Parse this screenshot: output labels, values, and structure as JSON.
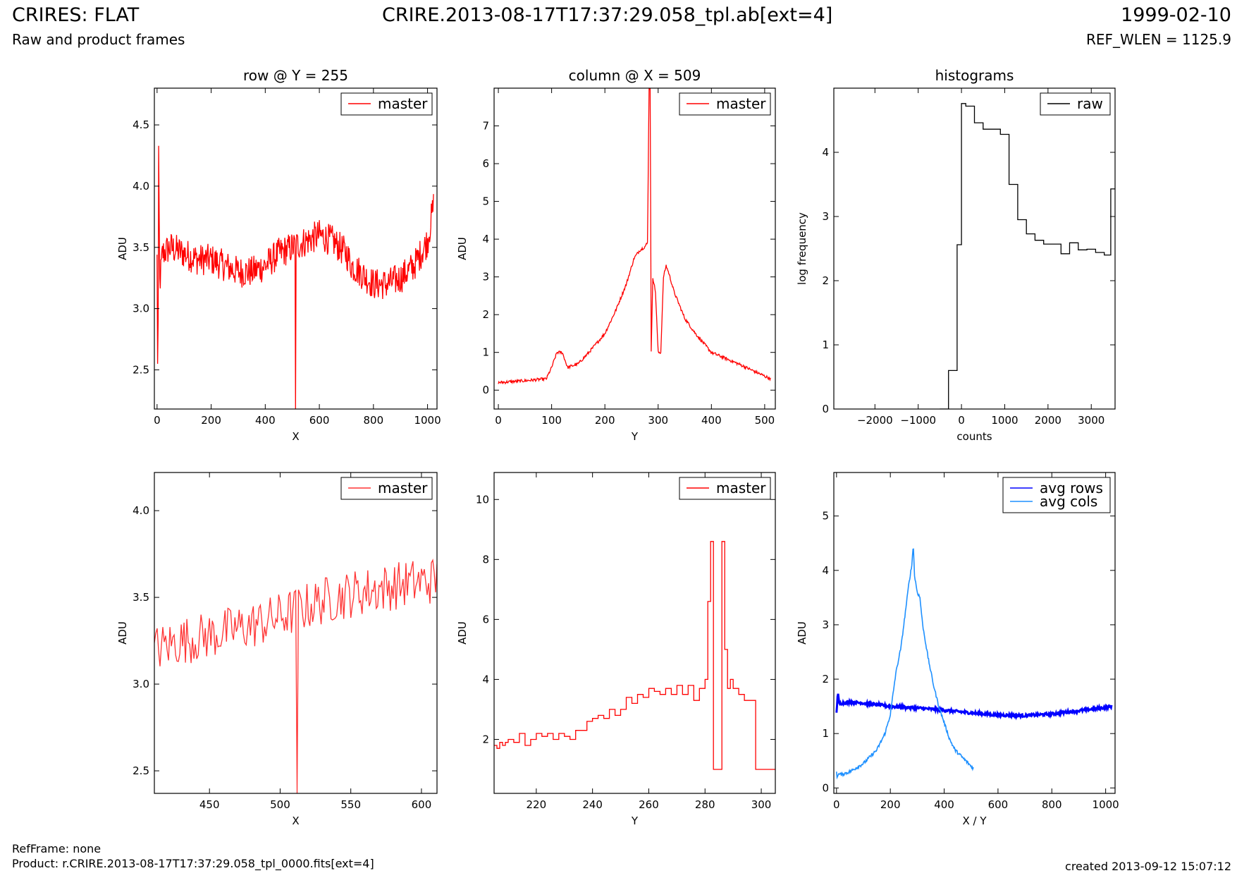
{
  "header": {
    "title_left": "CRIRES: FLAT",
    "subtitle_left": "Raw and product frames",
    "title_center": "CRIRE.2013-08-17T17:37:29.058_tpl.ab[ext=4]",
    "date": "1999-02-10",
    "ref_wlen": "REF_WLEN = 1125.9"
  },
  "footer": {
    "refframe": "RefFrame: none",
    "product": "Product: r.CRIRE.2013-08-17T17:37:29.058_tpl_0000.fits[ext=4]",
    "created": "created 2013-09-12 15:07:12"
  },
  "colors": {
    "red": "#ff0000",
    "light_red": "#ff3333",
    "black": "#000000",
    "blue": "#0000ff",
    "light_blue": "#1e90ff"
  },
  "chart_data": [
    {
      "id": "row",
      "type": "line",
      "title": "row @ Y = 255",
      "xlabel": "X",
      "ylabel": "ADU",
      "xlim": [
        -10,
        1035
      ],
      "ylim": [
        2.18,
        4.8
      ],
      "xticks": [
        0,
        200,
        400,
        600,
        800,
        1000
      ],
      "yticks": [
        2.5,
        3.0,
        3.5,
        4.0,
        4.5
      ],
      "ytick_labels": [
        "2.5",
        "3.0",
        "3.5",
        "4.0",
        "4.5"
      ],
      "legend": "top-right",
      "series": [
        {
          "name": "master",
          "color": "#ff0000",
          "noise": 0.13,
          "step": 2,
          "x": [
            0,
            3,
            6,
            10,
            20,
            50,
            100,
            150,
            200,
            250,
            300,
            350,
            400,
            450,
            500,
            550,
            600,
            650,
            700,
            720,
            750,
            800,
            850,
            900,
            950,
            1000,
            1023
          ],
          "y": [
            3.4,
            2.2,
            4.2,
            3.2,
            3.45,
            3.5,
            3.45,
            3.4,
            3.4,
            3.35,
            3.3,
            3.3,
            3.35,
            3.45,
            3.5,
            3.55,
            3.6,
            3.55,
            3.45,
            3.35,
            3.3,
            3.2,
            3.2,
            3.25,
            3.35,
            3.55,
            3.85
          ],
          "spikes": [
            [
              512,
              2.18
            ]
          ]
        }
      ]
    },
    {
      "id": "column",
      "type": "line",
      "title": "column @ X = 509",
      "xlabel": "Y",
      "ylabel": "ADU",
      "xlim": [
        -8,
        520
      ],
      "ylim": [
        -0.5,
        8.0
      ],
      "xticks": [
        0,
        100,
        200,
        300,
        400,
        500
      ],
      "yticks": [
        0,
        1,
        2,
        3,
        4,
        5,
        6,
        7
      ],
      "ytick_labels": [
        "0",
        "1",
        "2",
        "3",
        "4",
        "5",
        "6",
        "7"
      ],
      "legend": "top-right",
      "series": [
        {
          "name": "master",
          "color": "#ff0000",
          "noise": 0.04,
          "step": 1,
          "x": [
            0,
            50,
            90,
            100,
            110,
            120,
            130,
            150,
            170,
            200,
            220,
            240,
            255,
            265,
            275,
            280,
            283,
            285,
            287,
            290,
            295,
            300,
            305,
            310,
            315,
            320,
            330,
            350,
            370,
            400,
            450,
            511
          ],
          "y": [
            0.2,
            0.25,
            0.3,
            0.6,
            1.0,
            1.0,
            0.6,
            0.7,
            1.0,
            1.5,
            2.1,
            2.8,
            3.5,
            3.7,
            3.8,
            3.9,
            8.0,
            8.0,
            1.0,
            3.0,
            2.6,
            1.0,
            1.0,
            3.0,
            3.3,
            3.1,
            2.6,
            1.9,
            1.5,
            1.0,
            0.7,
            0.3
          ]
        }
      ]
    },
    {
      "id": "histograms",
      "type": "line",
      "title": "histograms",
      "xlabel": "counts",
      "ylabel": "log frequency",
      "xlim": [
        -2950,
        3550
      ],
      "ylim": [
        0,
        5.0
      ],
      "xticks": [
        -2000,
        -1000,
        0,
        1000,
        2000,
        3000
      ],
      "xtick_labels": [
        "−2000",
        "−1000",
        "0",
        "1000",
        "2000",
        "3000"
      ],
      "yticks": [
        0,
        1,
        2,
        3,
        4
      ],
      "ytick_labels": [
        "0",
        "1",
        "2",
        "3",
        "4"
      ],
      "legend": "top-right",
      "series": [
        {
          "name": "raw",
          "color": "#000000",
          "steps": true,
          "x": [
            -500,
            -300,
            -100,
            0,
            100,
            300,
            500,
            700,
            900,
            1100,
            1300,
            1500,
            1700,
            1900,
            2100,
            2300,
            2500,
            2700,
            2900,
            3100,
            3300,
            3450
          ],
          "y": [
            0,
            0.6,
            2.56,
            4.76,
            4.72,
            4.46,
            4.36,
            4.36,
            4.28,
            3.5,
            2.95,
            2.73,
            2.63,
            2.57,
            2.57,
            2.42,
            2.59,
            2.48,
            2.49,
            2.44,
            2.4,
            3.43
          ]
        }
      ]
    },
    {
      "id": "row-zoom",
      "type": "line",
      "title": "",
      "xlabel": "X",
      "ylabel": "ADU",
      "xlim": [
        411,
        611
      ],
      "ylim": [
        2.37,
        4.22
      ],
      "xticks": [
        450,
        500,
        550,
        600
      ],
      "yticks": [
        2.5,
        3.0,
        3.5,
        4.0
      ],
      "ytick_labels": [
        "2.5",
        "3.0",
        "3.5",
        "4.0"
      ],
      "legend": "top-right",
      "series": [
        {
          "name": "master",
          "color": "#ff3333",
          "noise": 0.14,
          "step": 1,
          "x": [
            411,
            430,
            450,
            470,
            490,
            510,
            530,
            550,
            570,
            590,
            611
          ],
          "y": [
            3.2,
            3.25,
            3.28,
            3.32,
            3.36,
            3.42,
            3.48,
            3.52,
            3.55,
            3.58,
            3.6
          ],
          "spikes": [
            [
              512,
              2.37
            ]
          ]
        }
      ]
    },
    {
      "id": "column-zoom",
      "type": "line",
      "title": "",
      "xlabel": "Y",
      "ylabel": "ADU",
      "xlim": [
        205,
        305
      ],
      "ylim": [
        0.2,
        10.9
      ],
      "xticks": [
        220,
        240,
        260,
        280,
        300
      ],
      "yticks": [
        2,
        4,
        6,
        8,
        10
      ],
      "ytick_labels": [
        "2",
        "4",
        "6",
        "8",
        "10"
      ],
      "legend": "top-right",
      "series": [
        {
          "name": "master",
          "color": "#ff0000",
          "steps": true,
          "x": [
            205,
            206,
            207,
            208,
            209,
            210,
            212,
            214,
            216,
            218,
            220,
            222,
            224,
            226,
            228,
            230,
            232,
            234,
            236,
            238,
            240,
            242,
            244,
            246,
            248,
            250,
            252,
            254,
            256,
            258,
            260,
            262,
            264,
            266,
            268,
            270,
            272,
            274,
            276,
            278,
            280,
            281,
            282,
            283,
            285,
            286,
            287,
            288,
            289,
            290,
            292,
            294,
            296,
            298,
            305
          ],
          "y": [
            1.8,
            1.7,
            1.9,
            1.8,
            1.9,
            2.0,
            1.9,
            2.2,
            1.8,
            2.0,
            2.2,
            2.1,
            2.2,
            2.0,
            2.2,
            2.1,
            2.0,
            2.3,
            2.3,
            2.6,
            2.7,
            2.8,
            2.7,
            3.0,
            2.8,
            3.0,
            3.4,
            3.2,
            3.5,
            3.4,
            3.7,
            3.6,
            3.5,
            3.7,
            3.5,
            3.8,
            3.5,
            3.8,
            3.3,
            3.7,
            4.0,
            6.6,
            8.6,
            1.0,
            1.0,
            8.6,
            5.0,
            3.7,
            4.0,
            3.7,
            3.5,
            3.3,
            3.3,
            1.0,
            1.0
          ]
        }
      ]
    },
    {
      "id": "averages",
      "type": "line",
      "title": "",
      "xlabel": "X / Y",
      "ylabel": "ADU",
      "xlim": [
        -10,
        1035
      ],
      "ylim": [
        -0.1,
        5.8
      ],
      "xticks": [
        0,
        200,
        400,
        600,
        800,
        1000
      ],
      "yticks": [
        0,
        1,
        2,
        3,
        4,
        5
      ],
      "ytick_labels": [
        "0",
        "1",
        "2",
        "3",
        "4",
        "5"
      ],
      "legend": "top-right",
      "series": [
        {
          "name": "avg rows",
          "color": "#0000ff",
          "noise": 0.025,
          "step": 2,
          "width": 3,
          "x": [
            0,
            5,
            10,
            50,
            100,
            200,
            300,
            400,
            500,
            600,
            700,
            800,
            900,
            1000,
            1023
          ],
          "y": [
            1.4,
            1.75,
            1.55,
            1.58,
            1.56,
            1.5,
            1.47,
            1.43,
            1.38,
            1.34,
            1.33,
            1.36,
            1.42,
            1.48,
            1.5
          ]
        },
        {
          "name": "avg cols",
          "color": "#1e90ff",
          "noise": 0.03,
          "step": 2,
          "width": 1.6,
          "x": [
            0,
            2,
            5,
            20,
            50,
            100,
            150,
            180,
            200,
            220,
            240,
            260,
            270,
            280,
            285,
            290,
            300,
            310,
            320,
            340,
            360,
            380,
            400,
            420,
            440,
            460,
            480,
            500,
            511
          ],
          "y": [
            0.3,
            0.2,
            0.25,
            0.25,
            0.3,
            0.45,
            0.7,
            1.0,
            1.35,
            2.1,
            2.6,
            3.4,
            3.8,
            4.1,
            4.5,
            3.9,
            3.6,
            3.5,
            3.0,
            2.4,
            1.9,
            1.5,
            1.2,
            0.9,
            0.7,
            0.6,
            0.5,
            0.4,
            0.35
          ]
        }
      ]
    }
  ]
}
